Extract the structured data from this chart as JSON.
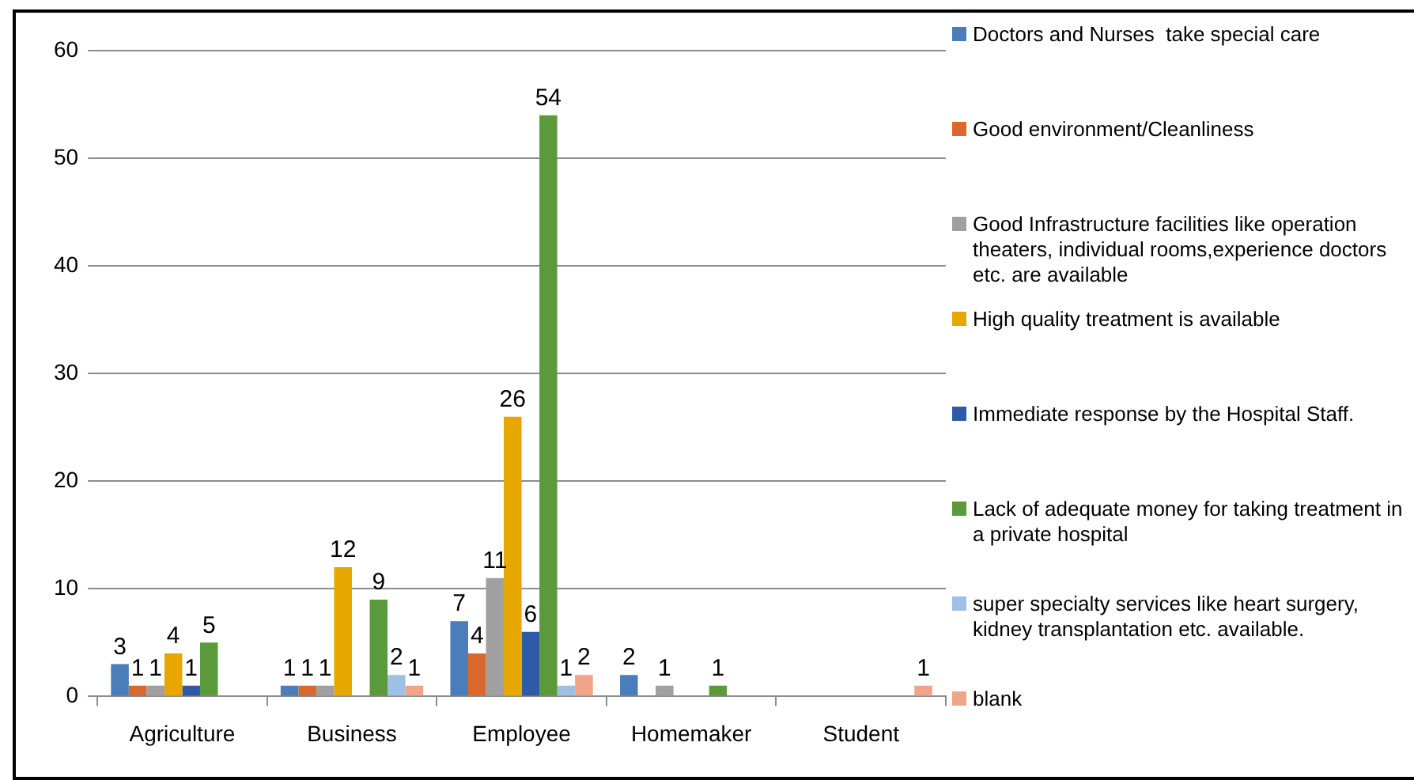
{
  "chart_data": {
    "type": "bar",
    "categories": [
      "Agriculture",
      "Business",
      "Employee",
      "Homemaker",
      "Student"
    ],
    "series": [
      {
        "name": "Doctors and Nurses  take special care",
        "color": "#4a7ebb",
        "values": [
          3,
          1,
          7,
          2,
          null
        ]
      },
      {
        "name": "Good environment/Cleanliness",
        "color": "#d9682e",
        "values": [
          1,
          1,
          4,
          null,
          null
        ]
      },
      {
        "name": "Good Infrastructure facilities like operation theaters, individual rooms,experience doctors etc. are available",
        "color": "#a0a0a0",
        "values": [
          1,
          1,
          11,
          1,
          null
        ]
      },
      {
        "name": "High quality treatment is available",
        "color": "#e6a800",
        "values": [
          4,
          12,
          26,
          null,
          null
        ]
      },
      {
        "name": "Immediate response by the Hospital Staff.",
        "color": "#2e5aa8",
        "values": [
          1,
          null,
          6,
          null,
          null
        ]
      },
      {
        "name": "Lack of adequate money for taking treatment in a private hospital",
        "color": "#5b9a3a",
        "values": [
          5,
          9,
          54,
          1,
          null
        ]
      },
      {
        "name": "super specialty services like heart surgery, kidney transplantation etc. available.",
        "color": "#9dc0e4",
        "values": [
          null,
          2,
          1,
          null,
          null
        ]
      },
      {
        "name": "blank",
        "color": "#f0a488",
        "values": [
          null,
          1,
          2,
          null,
          1
        ]
      }
    ],
    "ylim": [
      0,
      60
    ],
    "yticks": [
      0,
      10,
      20,
      30,
      40,
      50,
      60
    ],
    "grid": "y",
    "legend": "right",
    "data_labels": true
  }
}
